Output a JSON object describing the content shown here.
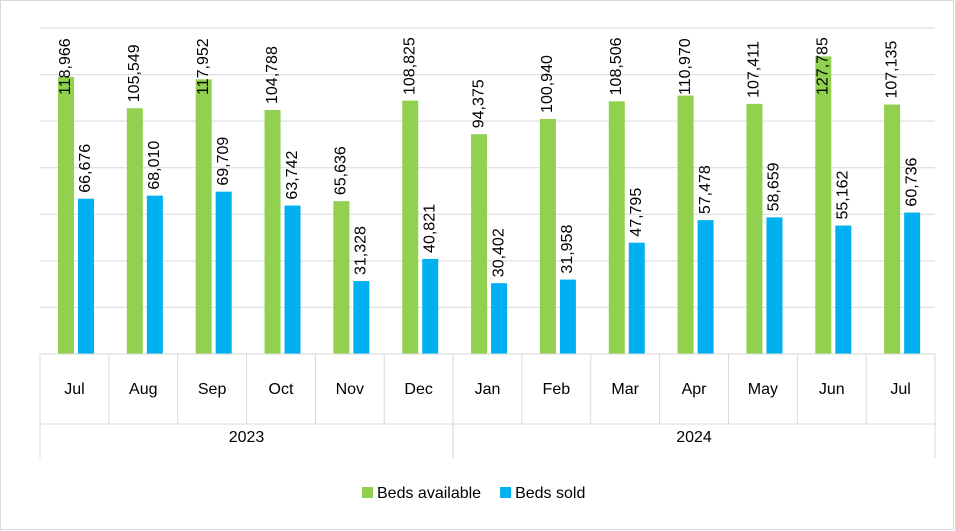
{
  "chart_data": {
    "type": "bar",
    "categories": [
      "Jul",
      "Aug",
      "Sep",
      "Oct",
      "Nov",
      "Dec",
      "Jan",
      "Feb",
      "Mar",
      "Apr",
      "May",
      "Jun",
      "Jul"
    ],
    "x_groups": [
      {
        "label": "2023",
        "count": 6
      },
      {
        "label": "2024",
        "count": 7
      }
    ],
    "series": [
      {
        "name": "Beds available",
        "color": "#92d050",
        "values": [
          118966,
          105549,
          117952,
          104788,
          65636,
          108825,
          94375,
          100940,
          108506,
          110970,
          107411,
          127785,
          107135
        ],
        "value_labels": [
          "118,966",
          "105,549",
          "117,952",
          "104,788",
          "65,636",
          "108,825",
          "94,375",
          "100,940",
          "108,506",
          "110,970",
          "107,411",
          "127,785",
          "107,135"
        ]
      },
      {
        "name": "Beds sold",
        "color": "#00b0f0",
        "values": [
          66676,
          68010,
          69709,
          63742,
          31328,
          40821,
          30402,
          31958,
          47795,
          57478,
          58659,
          55162,
          60736
        ],
        "value_labels": [
          "66,676",
          "68,010",
          "69,709",
          "63,742",
          "31,328",
          "40,821",
          "30,402",
          "31,958",
          "47,795",
          "57,478",
          "58,659",
          "55,162",
          "60,736"
        ]
      }
    ],
    "ylim": [
      0,
      140000
    ],
    "yticks": [
      0,
      20000,
      40000,
      60000,
      80000,
      100000,
      120000,
      140000
    ],
    "grid": true,
    "legend": "bottom"
  }
}
